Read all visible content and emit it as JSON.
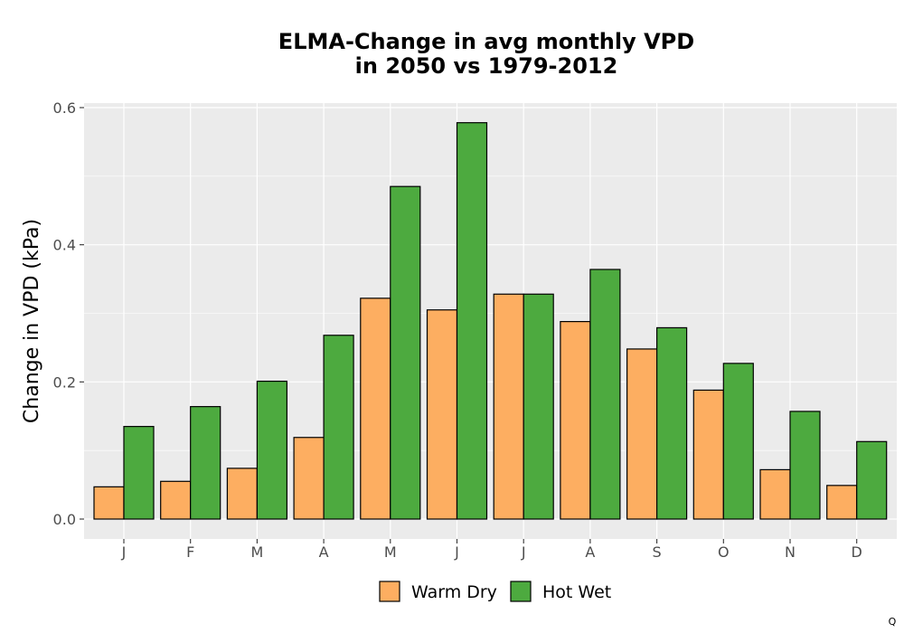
{
  "chart_data": {
    "type": "bar",
    "title_lines": [
      "ELMA-Change in avg monthly VPD",
      "in 2050 vs 1979-2012"
    ],
    "xlabel": "",
    "ylabel": "Change in VPD (kPa)",
    "categories": [
      "J",
      "F",
      "M",
      "A",
      "M",
      "J",
      "J",
      "A",
      "S",
      "O",
      "N",
      "D"
    ],
    "series": [
      {
        "name": "Warm Dry",
        "color": "#FDAE61",
        "values": [
          0.047,
          0.055,
          0.074,
          0.119,
          0.322,
          0.305,
          0.328,
          0.288,
          0.248,
          0.188,
          0.072,
          0.049
        ]
      },
      {
        "name": "Hot Wet",
        "color": "#4DAA3F",
        "values": [
          0.135,
          0.164,
          0.201,
          0.268,
          0.485,
          0.578,
          0.328,
          0.364,
          0.279,
          0.227,
          0.157,
          0.113
        ]
      }
    ],
    "ylim": [
      -0.03,
      0.61
    ],
    "yticks": [
      0.0,
      0.2,
      0.4,
      0.6
    ],
    "ytick_labels": [
      "0.0",
      "0.2",
      "0.4",
      "0.6"
    ],
    "grid": true,
    "panel_background": "#EBEBEB",
    "legend_position": "bottom"
  },
  "corner_mark": "Q"
}
